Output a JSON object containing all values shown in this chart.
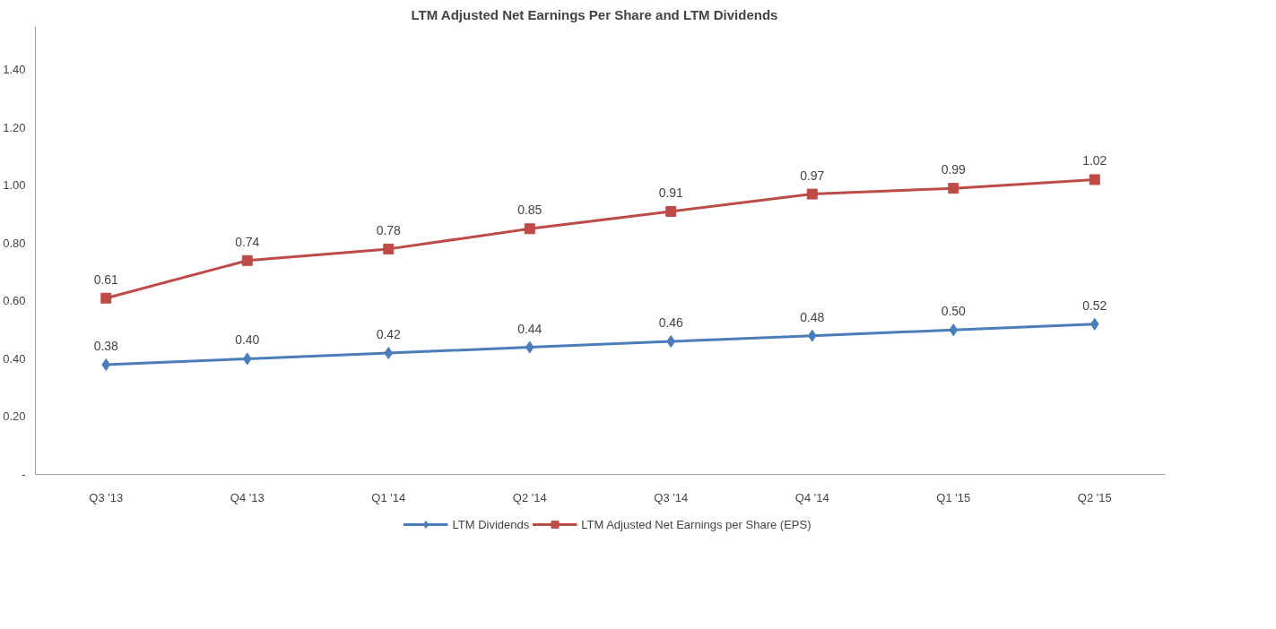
{
  "chart_data": {
    "type": "line",
    "title": "LTM  Adjusted  Net Earnings  Per Share and LTM Dividends",
    "categories": [
      "Q3 '13",
      "Q4 '13",
      "Q1 '14",
      "Q2 '14",
      "Q3 '14",
      "Q4 '14",
      "Q1 '15",
      "Q2 '15"
    ],
    "series": [
      {
        "name": "LTM Dividends",
        "color": "#4a7ebb",
        "marker": "diamond",
        "values": [
          0.38,
          0.4,
          0.42,
          0.44,
          0.46,
          0.48,
          0.5,
          0.52
        ],
        "value_labels": [
          "0.38",
          "0.40",
          "0.42",
          "0.44",
          "0.46",
          "0.48",
          "0.50",
          "0.52"
        ]
      },
      {
        "name": "LTM Adjusted Net Earnings per Share (EPS)",
        "color": "#be4b48",
        "marker": "square",
        "values": [
          0.61,
          0.74,
          0.78,
          0.85,
          0.91,
          0.97,
          0.99,
          1.02
        ],
        "value_labels": [
          "0.61",
          "0.74",
          "0.78",
          "0.85",
          "0.91",
          "0.97",
          "0.99",
          "1.02"
        ]
      }
    ],
    "ylim": [
      0,
      1.55
    ],
    "yticks": [
      {
        "value": 0,
        "label": "-"
      },
      {
        "value": 0.2,
        "label": "0.20"
      },
      {
        "value": 0.4,
        "label": "0.40"
      },
      {
        "value": 0.6,
        "label": "0.60"
      },
      {
        "value": 0.8,
        "label": "0.80"
      },
      {
        "value": 1.0,
        "label": "1.00"
      },
      {
        "value": 1.2,
        "label": "1.20"
      },
      {
        "value": 1.4,
        "label": "1.40"
      }
    ],
    "grid": false,
    "legend": "bottom",
    "line_style": "solid"
  }
}
